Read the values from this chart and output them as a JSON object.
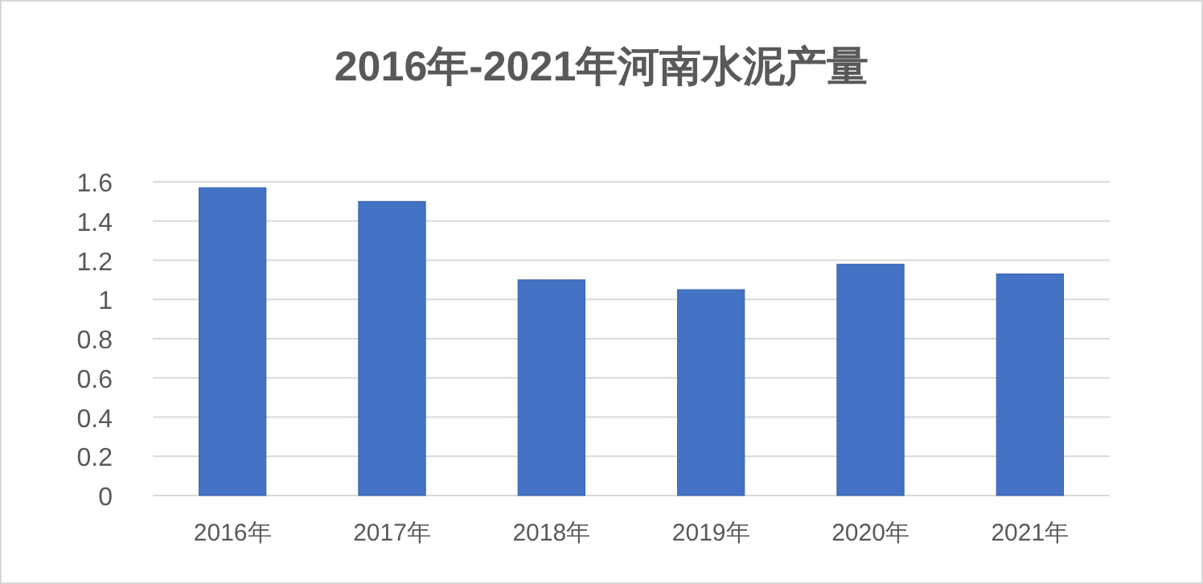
{
  "chart_data": {
    "type": "bar",
    "title": "2016年-2021年河南水泥产量",
    "categories": [
      "2016年",
      "2017年",
      "2018年",
      "2019年",
      "2020年",
      "2021年"
    ],
    "values": [
      1.57,
      1.5,
      1.1,
      1.05,
      1.18,
      1.13
    ],
    "color": "#4472c4",
    "ylim": [
      0,
      1.6
    ],
    "yticks": [
      0,
      0.2,
      0.4,
      0.6,
      0.8,
      1,
      1.2,
      1.4,
      1.6
    ],
    "grid": "y"
  }
}
